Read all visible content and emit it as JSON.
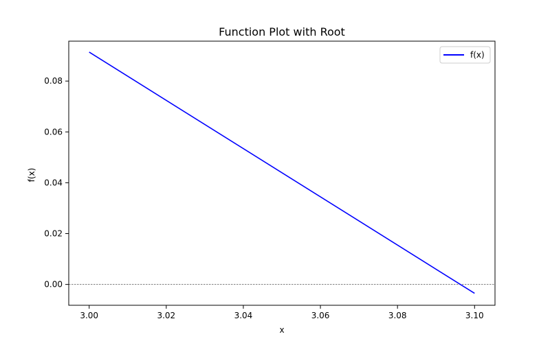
{
  "chart_data": {
    "type": "line",
    "title": "Function Plot with Root",
    "xlabel": "x",
    "ylabel": "f(x)",
    "xlim": [
      2.9947,
      3.1053
    ],
    "ylim": [
      -0.0082,
      0.0957
    ],
    "xticks": [
      "3.00",
      "3.02",
      "3.04",
      "3.06",
      "3.08",
      "3.10"
    ],
    "yticks": [
      "0.00",
      "0.02",
      "0.04",
      "0.06",
      "0.08"
    ],
    "series": [
      {
        "name": "f(x)",
        "color": "#0000ff",
        "x": [
          3.0,
          3.1
        ],
        "y": [
          0.0914,
          -0.0035
        ]
      }
    ],
    "reference_line": {
      "y": 0,
      "color": "#000000",
      "style": "dashed"
    },
    "legend": {
      "position": "top-right",
      "entries": [
        "f(x)"
      ]
    },
    "grid": false
  }
}
